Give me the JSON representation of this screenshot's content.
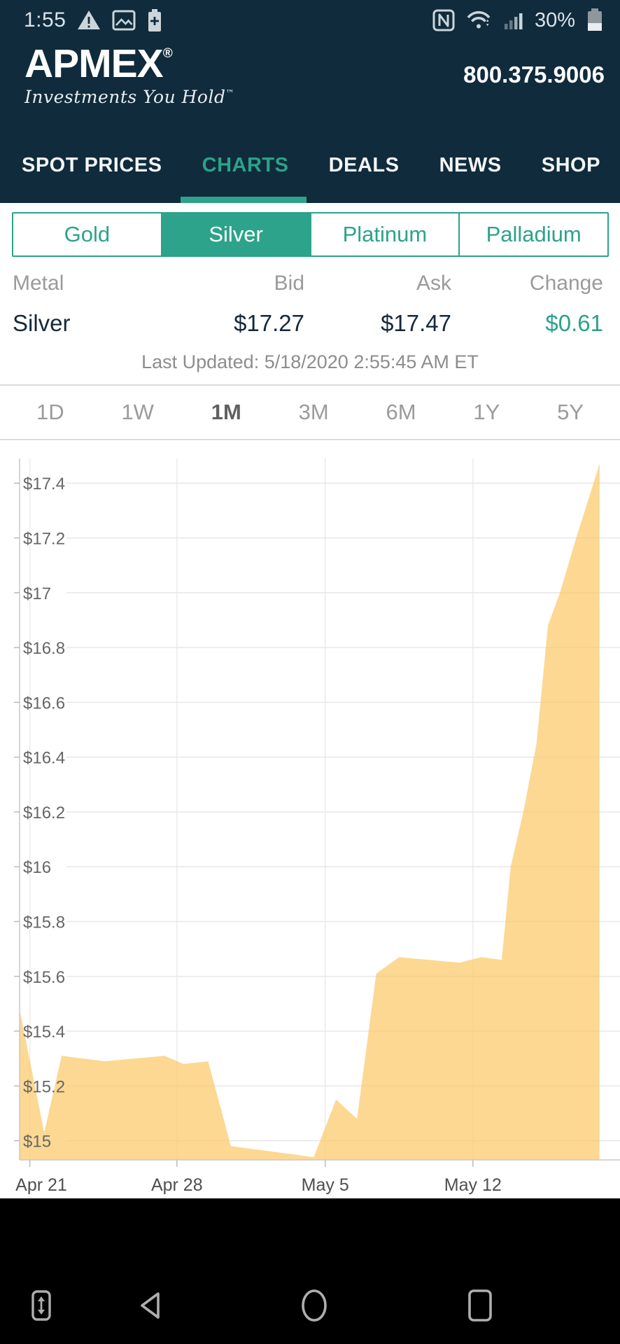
{
  "status_bar": {
    "time": "1:55",
    "battery_percent": "30%",
    "left_icons": [
      "warning-icon",
      "image-icon",
      "battery-saver-icon"
    ],
    "right_icons": [
      "nfc-icon",
      "wifi-icon",
      "signal-strength-icon",
      "battery-icon"
    ]
  },
  "header": {
    "logo": "APMEX",
    "logo_registered": "®",
    "tagline": "Investments You Hold",
    "tagline_trademark": "™",
    "phone": "800.375.9006"
  },
  "nav": {
    "items": [
      {
        "label": "SPOT PRICES",
        "active": false
      },
      {
        "label": "CHARTS",
        "active": true
      },
      {
        "label": "DEALS",
        "active": false
      },
      {
        "label": "NEWS",
        "active": false
      },
      {
        "label": "SHOP",
        "active": false
      }
    ]
  },
  "metal_tabs": {
    "items": [
      {
        "label": "Gold",
        "active": false
      },
      {
        "label": "Silver",
        "active": true
      },
      {
        "label": "Platinum",
        "active": false
      },
      {
        "label": "Palladium",
        "active": false
      }
    ]
  },
  "price_table": {
    "headers": [
      "Metal",
      "Bid",
      "Ask",
      "Change"
    ],
    "row": {
      "metal": "Silver",
      "bid": "$17.27",
      "ask": "$17.47",
      "change": "$0.61",
      "change_positive": true
    }
  },
  "last_updated": "Last Updated: 5/18/2020 2:55:45 AM ET",
  "range_tabs": {
    "items": [
      {
        "label": "1D",
        "active": false
      },
      {
        "label": "1W",
        "active": false
      },
      {
        "label": "1M",
        "active": true
      },
      {
        "label": "3M",
        "active": false
      },
      {
        "label": "6M",
        "active": false
      },
      {
        "label": "1Y",
        "active": false
      },
      {
        "label": "5Y",
        "active": false
      }
    ]
  },
  "chart_data": {
    "type": "area",
    "title": "Silver spot price, 1 month (USD/oz)",
    "fill_color": "#fbc96a",
    "fill_opacity": 0.72,
    "grid": true,
    "legend": "none",
    "ylim": [
      14.93,
      17.49
    ],
    "y_ticks": [
      17.4,
      17.2,
      17.0,
      16.8,
      16.6,
      16.4,
      16.2,
      16.0,
      15.8,
      15.6,
      15.4,
      15.2,
      15.0
    ],
    "y_tick_labels": [
      "$17.4",
      "$17.2",
      "$17",
      "$16.8",
      "$16.6",
      "$16.4",
      "$16.2",
      "$16",
      "$15.8",
      "$15.6",
      "$15.4",
      "$15.2",
      "$15"
    ],
    "x_ticks": [
      {
        "label": "Apr 21",
        "f": 0.017
      },
      {
        "label": "Apr 28",
        "f": 0.262
      },
      {
        "label": "May 5",
        "f": 0.509
      },
      {
        "label": "May 12",
        "f": 0.755
      }
    ],
    "points": [
      {
        "date": "Apr 20",
        "value": 15.48,
        "f": 0.0
      },
      {
        "date": "Apr 21",
        "value": 15.03,
        "f": 0.041
      },
      {
        "date": "Apr 22",
        "value": 15.31,
        "f": 0.07
      },
      {
        "date": "Apr 24",
        "value": 15.29,
        "f": 0.142
      },
      {
        "date": "Apr 27",
        "value": 15.31,
        "f": 0.241
      },
      {
        "date": "Apr 28",
        "value": 15.28,
        "f": 0.273
      },
      {
        "date": "Apr 29",
        "value": 15.29,
        "f": 0.314
      },
      {
        "date": "Apr 30",
        "value": 14.98,
        "f": 0.352
      },
      {
        "date": "May 2",
        "value": 14.96,
        "f": 0.422
      },
      {
        "date": "May 4",
        "value": 14.94,
        "f": 0.49
      },
      {
        "date": "May 5",
        "value": 15.15,
        "f": 0.527
      },
      {
        "date": "May 6",
        "value": 15.08,
        "f": 0.562
      },
      {
        "date": "May 7",
        "value": 15.61,
        "f": 0.594
      },
      {
        "date": "May 8",
        "value": 15.67,
        "f": 0.632
      },
      {
        "date": "May 11",
        "value": 15.65,
        "f": 0.733
      },
      {
        "date": "May 12",
        "value": 15.67,
        "f": 0.769
      },
      {
        "date": "May 13",
        "value": 15.66,
        "f": 0.803
      },
      {
        "date": "May 13",
        "value": 16.0,
        "f": 0.818
      },
      {
        "date": "May 14",
        "value": 16.2,
        "f": 0.839
      },
      {
        "date": "May 14",
        "value": 16.45,
        "f": 0.861
      },
      {
        "date": "May 15",
        "value": 16.88,
        "f": 0.88
      },
      {
        "date": "May 15",
        "value": 17.0,
        "f": 0.9
      },
      {
        "date": "May 16",
        "value": 17.2,
        "f": 0.927
      },
      {
        "date": "May 18",
        "value": 17.47,
        "f": 0.966
      }
    ]
  },
  "colors": {
    "header_bg": "#0f2b3c",
    "accent_teal": "#2ca38a",
    "positive_change": "#2ba38a",
    "chart_fill": "#fbc96a"
  },
  "android_nav": {
    "buttons": [
      "hide-nav-icon",
      "back-icon",
      "home-icon",
      "recents-icon"
    ]
  }
}
